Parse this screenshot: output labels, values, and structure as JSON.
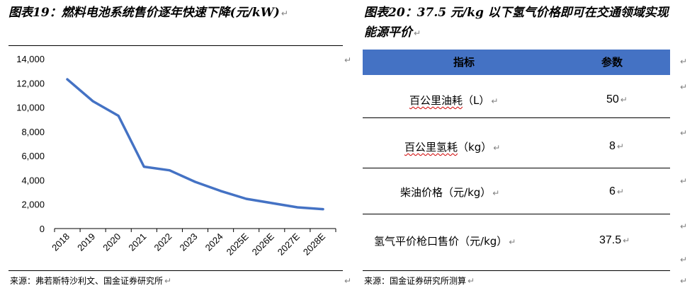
{
  "left": {
    "title": "图表19：燃料电池系统售价逐年快速下降(元/kW)",
    "source": "来源：弗若斯特沙利文、国金证券研究所"
  },
  "right": {
    "title_line1": "图表20：37.5 元/kg 以下氢气价格即可在交通领域实现",
    "title_line2": "能源平价",
    "source": "来源：国金证券研究所测算",
    "table": {
      "headers": [
        "指标",
        "参数"
      ],
      "rows": [
        {
          "label_main": "百公里油耗",
          "label_unit": "（L）",
          "value": "50"
        },
        {
          "label_main": "百公里氢耗",
          "label_unit": "（kg）",
          "value": "8"
        },
        {
          "label_main": "柴油价格",
          "label_unit": "（元/kg）",
          "value": "6"
        },
        {
          "label_main": "氢气平价枪口售价",
          "label_unit": "（元/kg）",
          "value": "37.5"
        }
      ]
    }
  },
  "para_mark": "↵",
  "colors": {
    "line": "#4472c4",
    "table_header": "#4472c4",
    "spell_underline": "#d00000"
  },
  "chart_data": {
    "type": "line",
    "title": "",
    "xlabel": "",
    "ylabel": "",
    "categories": [
      "2018",
      "2019",
      "2020",
      "2021",
      "2022",
      "2023",
      "2024",
      "2025E",
      "2026E",
      "2027E",
      "2028E"
    ],
    "series": [
      {
        "values": [
          12300,
          10500,
          9300,
          5100,
          4800,
          3850,
          3100,
          2450,
          2100,
          1750,
          1600
        ]
      }
    ],
    "ylim": [
      0,
      14000
    ],
    "yticks": [
      "0",
      "2,000",
      "4,000",
      "6,000",
      "8,000",
      "10,000",
      "12,000",
      "14,000"
    ],
    "grid": false,
    "legend": "none"
  }
}
